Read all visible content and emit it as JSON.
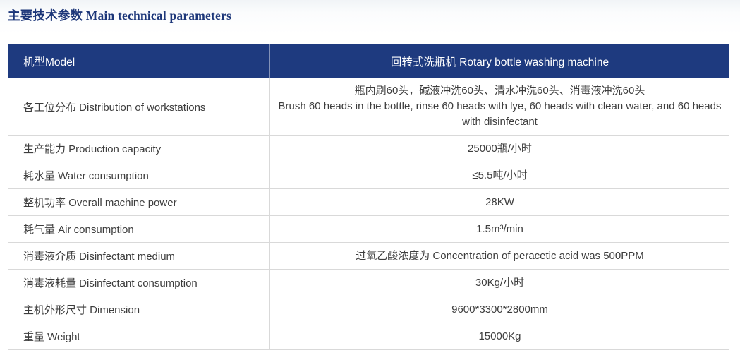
{
  "page": {
    "title": "主要技术参数 Main technical parameters"
  },
  "colors": {
    "header_bg": "#1e3a7f",
    "title_navy": "#1c3679",
    "row_border": "#d9d9d9",
    "body_text": "#3d3d3d"
  },
  "table": {
    "header": {
      "model_label": "机型Model",
      "machine_name": "回转式洗瓶机 Rotary bottle washing machine"
    },
    "rows": [
      {
        "label": "各工位分布 Distribution of workstations",
        "value_cn": "瓶内刷60头，碱液冲洗60头、清水冲洗60头、消毒液冲洗60头",
        "value_en": "Brush 60 heads in the bottle, rinse 60 heads with lye, 60 heads with clean water, and 60 heads with disinfectant"
      },
      {
        "label": "生产能力 Production capacity",
        "value": "25000瓶/小时"
      },
      {
        "label": "耗水量 Water consumption",
        "value": "≤5.5吨/小时"
      },
      {
        "label": "整机功率 Overall machine power",
        "value": "28KW"
      },
      {
        "label": "耗气量 Air consumption",
        "value": "1.5m³/min"
      },
      {
        "label": "消毒液介质 Disinfectant medium",
        "value": "过氧乙酸浓度为 Concentration of peracetic acid was 500PPM"
      },
      {
        "label": "消毒液耗量 Disinfectant consumption",
        "value": "30Kg/小时"
      },
      {
        "label": "主机外形尺寸 Dimension",
        "value": "9600*3300*2800mm"
      },
      {
        "label": "重量 Weight",
        "value": "15000Kg"
      }
    ]
  }
}
